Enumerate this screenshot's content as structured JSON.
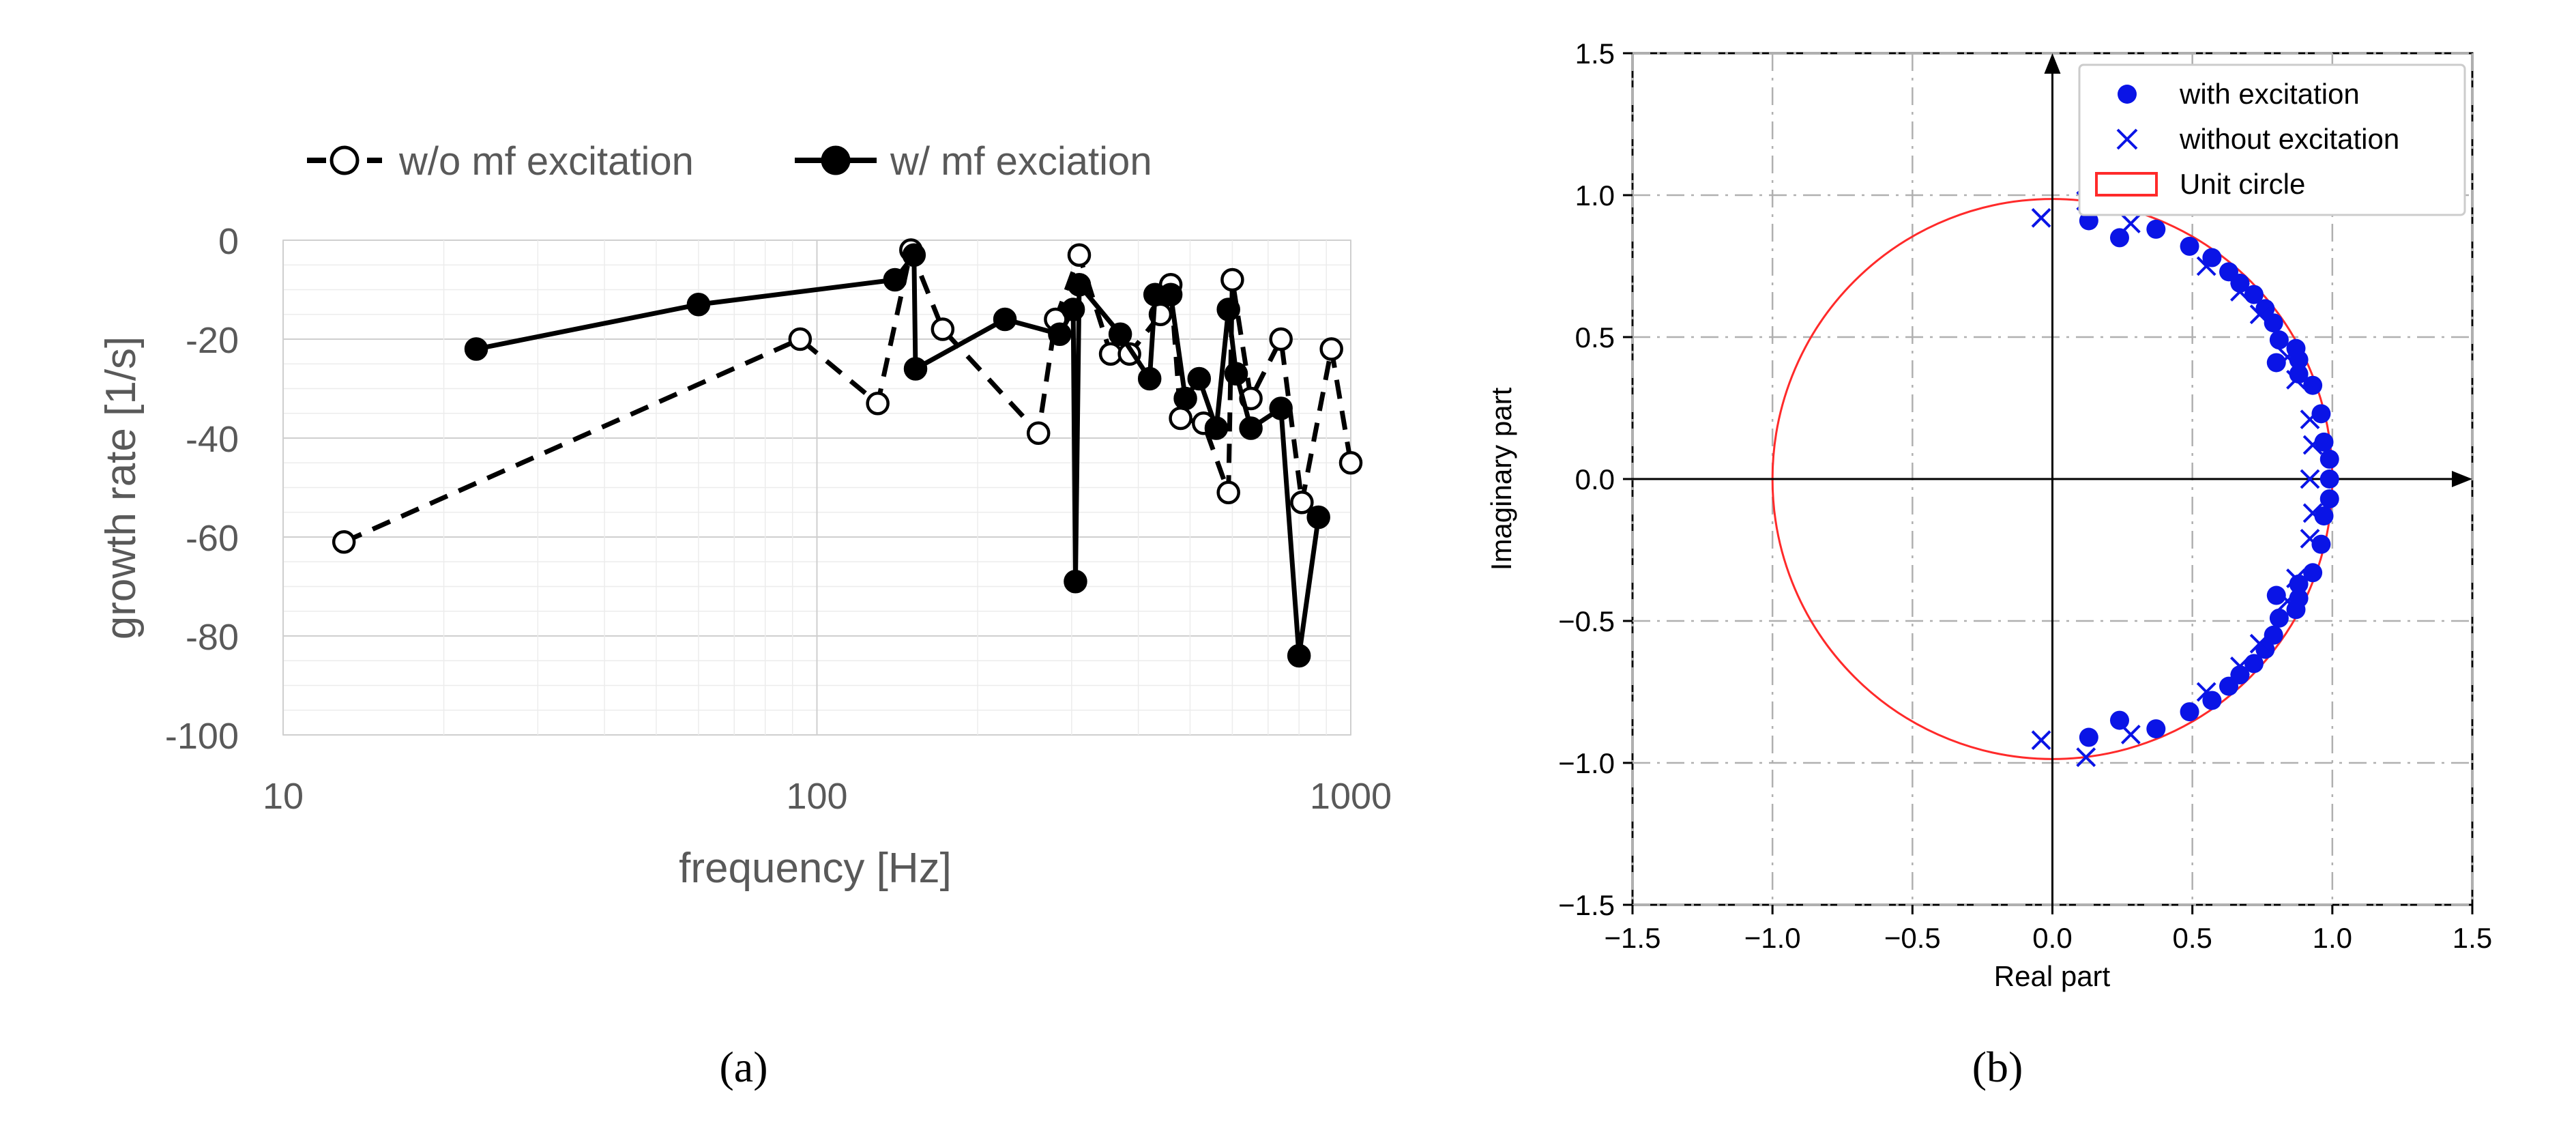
{
  "figure": {
    "panel_a_label": "(a)",
    "panel_b_label": "(b)",
    "colors": {
      "axis_gray": "#595959",
      "grid_minor": "#ececec",
      "grid_major": "#cfcfcf",
      "series_black": "#000000",
      "blue": "#0a14e6",
      "red": "#ff2a2a"
    }
  },
  "chart_data": [
    {
      "id": "a",
      "type": "line",
      "x_scale": "log",
      "xlabel": "frequency [Hz]",
      "ylabel": "growth rate [1/s]",
      "xlim": [
        10,
        1000
      ],
      "ylim": [
        -100,
        0
      ],
      "xticks": [
        10,
        100,
        1000
      ],
      "xtick_labels": [
        "10",
        "100",
        "1000"
      ],
      "yticks": [
        0,
        -20,
        -40,
        -60,
        -80,
        -100
      ],
      "ytick_labels": [
        "0",
        "-20",
        "-40",
        "-60",
        "-80",
        "-100"
      ],
      "grid": true,
      "legend_position": "top",
      "series": [
        {
          "name": "w/o mf excitation",
          "style": "dashed-open",
          "points": [
            [
              13,
              -61
            ],
            [
              93,
              -20
            ],
            [
              130,
              -33
            ],
            [
              150,
              -2
            ],
            [
              172,
              -18
            ],
            [
              260,
              -39
            ],
            [
              280,
              -16
            ],
            [
              310,
              -3
            ],
            [
              355,
              -23
            ],
            [
              385,
              -23
            ],
            [
              440,
              -15
            ],
            [
              460,
              -9
            ],
            [
              480,
              -36
            ],
            [
              530,
              -37
            ],
            [
              590,
              -51
            ],
            [
              600,
              -8
            ],
            [
              650,
              -32
            ],
            [
              740,
              -20
            ],
            [
              810,
              -53
            ],
            [
              920,
              -22
            ],
            [
              1000,
              -45
            ]
          ]
        },
        {
          "name": "w/ mf exciation",
          "style": "solid-filled",
          "points": [
            [
              23,
              -22
            ],
            [
              60,
              -13
            ],
            [
              140,
              -8
            ],
            [
              152,
              -3
            ],
            [
              153,
              -26
            ],
            [
              225,
              -16
            ],
            [
              285,
              -19
            ],
            [
              302,
              -14
            ],
            [
              305,
              -69
            ],
            [
              310,
              -9
            ],
            [
              370,
              -19
            ],
            [
              420,
              -28
            ],
            [
              430,
              -11
            ],
            [
              460,
              -11
            ],
            [
              490,
              -32
            ],
            [
              520,
              -28
            ],
            [
              560,
              -38
            ],
            [
              590,
              -14
            ],
            [
              610,
              -27
            ],
            [
              650,
              -38
            ],
            [
              740,
              -34
            ],
            [
              800,
              -84
            ],
            [
              870,
              -56
            ]
          ]
        }
      ]
    },
    {
      "id": "b",
      "type": "scatter",
      "xlabel": "Real part",
      "ylabel": "Imaginary part",
      "xlim": [
        -1.5,
        1.5
      ],
      "ylim": [
        -1.5,
        1.5
      ],
      "xticks": [
        -1.5,
        -1.0,
        -0.5,
        0.0,
        0.5,
        1.0,
        1.5
      ],
      "xtick_labels": [
        "−1.5",
        "−1.0",
        "−0.5",
        "0.0",
        "0.5",
        "1.0",
        "1.5"
      ],
      "yticks": [
        1.5,
        1.0,
        0.5,
        0.0,
        -0.5,
        -1.0,
        -1.5
      ],
      "ytick_labels": [
        "1.5",
        "1.0",
        "0.5",
        "0.0",
        "−0.5",
        "−1.0",
        "−1.5"
      ],
      "grid": true,
      "legend_position": "top-right",
      "legend": [
        "with excitation",
        "without excitation",
        "Unit circle"
      ],
      "unit_circle_radius": 1.0,
      "series": [
        {
          "name": "with excitation",
          "marker": "filled-circle",
          "points": [
            [
              0.13,
              0.91
            ],
            [
              0.24,
              0.85
            ],
            [
              0.37,
              0.88
            ],
            [
              0.49,
              0.82
            ],
            [
              0.57,
              0.78
            ],
            [
              0.63,
              0.73
            ],
            [
              0.67,
              0.69
            ],
            [
              0.72,
              0.65
            ],
            [
              0.76,
              0.6
            ],
            [
              0.79,
              0.55
            ],
            [
              0.81,
              0.49
            ],
            [
              0.87,
              0.46
            ],
            [
              0.88,
              0.42
            ],
            [
              0.88,
              0.37
            ],
            [
              0.8,
              0.41
            ],
            [
              0.93,
              0.33
            ],
            [
              0.96,
              0.23
            ],
            [
              0.97,
              0.13
            ],
            [
              0.99,
              0.07
            ],
            [
              0.99,
              0.0
            ],
            [
              0.99,
              -0.07
            ],
            [
              0.97,
              -0.13
            ],
            [
              0.96,
              -0.23
            ],
            [
              0.93,
              -0.33
            ],
            [
              0.8,
              -0.41
            ],
            [
              0.88,
              -0.37
            ],
            [
              0.88,
              -0.42
            ],
            [
              0.87,
              -0.46
            ],
            [
              0.81,
              -0.49
            ],
            [
              0.79,
              -0.55
            ],
            [
              0.76,
              -0.6
            ],
            [
              0.72,
              -0.65
            ],
            [
              0.67,
              -0.69
            ],
            [
              0.63,
              -0.73
            ],
            [
              0.57,
              -0.78
            ],
            [
              0.49,
              -0.82
            ],
            [
              0.37,
              -0.88
            ],
            [
              0.24,
              -0.85
            ],
            [
              0.13,
              -0.91
            ]
          ]
        },
        {
          "name": "without excitation",
          "marker": "x",
          "points": [
            [
              -0.04,
              0.92
            ],
            [
              0.12,
              0.98
            ],
            [
              0.28,
              0.9
            ],
            [
              0.55,
              0.75
            ],
            [
              0.67,
              0.66
            ],
            [
              0.74,
              0.58
            ],
            [
              0.84,
              0.43
            ],
            [
              0.87,
              0.35
            ],
            [
              0.92,
              0.21
            ],
            [
              0.93,
              0.12
            ],
            [
              0.92,
              0.0
            ],
            [
              0.93,
              -0.12
            ],
            [
              0.92,
              -0.21
            ],
            [
              0.87,
              -0.35
            ],
            [
              0.84,
              -0.43
            ],
            [
              0.74,
              -0.58
            ],
            [
              0.67,
              -0.66
            ],
            [
              0.55,
              -0.75
            ],
            [
              0.28,
              -0.9
            ],
            [
              0.12,
              -0.98
            ],
            [
              -0.04,
              -0.92
            ]
          ]
        }
      ]
    }
  ]
}
